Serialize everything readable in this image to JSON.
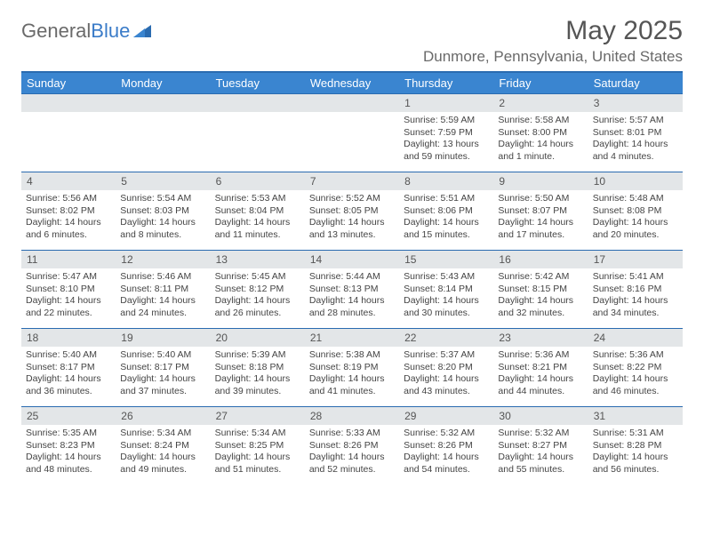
{
  "brand": {
    "part1": "General",
    "part2": "Blue"
  },
  "title": "May 2025",
  "location": "Dunmore, Pennsylvania, United States",
  "colors": {
    "header_bg": "#3a85d0",
    "header_border": "#2a6bb0",
    "daynum_bg": "#e3e6e8",
    "text": "#444444",
    "title_text": "#555555"
  },
  "day_headers": [
    "Sunday",
    "Monday",
    "Tuesday",
    "Wednesday",
    "Thursday",
    "Friday",
    "Saturday"
  ],
  "weeks": [
    [
      null,
      null,
      null,
      null,
      {
        "n": "1",
        "sr": "5:59 AM",
        "ss": "7:59 PM",
        "dl": "13 hours and 59 minutes."
      },
      {
        "n": "2",
        "sr": "5:58 AM",
        "ss": "8:00 PM",
        "dl": "14 hours and 1 minute."
      },
      {
        "n": "3",
        "sr": "5:57 AM",
        "ss": "8:01 PM",
        "dl": "14 hours and 4 minutes."
      }
    ],
    [
      {
        "n": "4",
        "sr": "5:56 AM",
        "ss": "8:02 PM",
        "dl": "14 hours and 6 minutes."
      },
      {
        "n": "5",
        "sr": "5:54 AM",
        "ss": "8:03 PM",
        "dl": "14 hours and 8 minutes."
      },
      {
        "n": "6",
        "sr": "5:53 AM",
        "ss": "8:04 PM",
        "dl": "14 hours and 11 minutes."
      },
      {
        "n": "7",
        "sr": "5:52 AM",
        "ss": "8:05 PM",
        "dl": "14 hours and 13 minutes."
      },
      {
        "n": "8",
        "sr": "5:51 AM",
        "ss": "8:06 PM",
        "dl": "14 hours and 15 minutes."
      },
      {
        "n": "9",
        "sr": "5:50 AM",
        "ss": "8:07 PM",
        "dl": "14 hours and 17 minutes."
      },
      {
        "n": "10",
        "sr": "5:48 AM",
        "ss": "8:08 PM",
        "dl": "14 hours and 20 minutes."
      }
    ],
    [
      {
        "n": "11",
        "sr": "5:47 AM",
        "ss": "8:10 PM",
        "dl": "14 hours and 22 minutes."
      },
      {
        "n": "12",
        "sr": "5:46 AM",
        "ss": "8:11 PM",
        "dl": "14 hours and 24 minutes."
      },
      {
        "n": "13",
        "sr": "5:45 AM",
        "ss": "8:12 PM",
        "dl": "14 hours and 26 minutes."
      },
      {
        "n": "14",
        "sr": "5:44 AM",
        "ss": "8:13 PM",
        "dl": "14 hours and 28 minutes."
      },
      {
        "n": "15",
        "sr": "5:43 AM",
        "ss": "8:14 PM",
        "dl": "14 hours and 30 minutes."
      },
      {
        "n": "16",
        "sr": "5:42 AM",
        "ss": "8:15 PM",
        "dl": "14 hours and 32 minutes."
      },
      {
        "n": "17",
        "sr": "5:41 AM",
        "ss": "8:16 PM",
        "dl": "14 hours and 34 minutes."
      }
    ],
    [
      {
        "n": "18",
        "sr": "5:40 AM",
        "ss": "8:17 PM",
        "dl": "14 hours and 36 minutes."
      },
      {
        "n": "19",
        "sr": "5:40 AM",
        "ss": "8:17 PM",
        "dl": "14 hours and 37 minutes."
      },
      {
        "n": "20",
        "sr": "5:39 AM",
        "ss": "8:18 PM",
        "dl": "14 hours and 39 minutes."
      },
      {
        "n": "21",
        "sr": "5:38 AM",
        "ss": "8:19 PM",
        "dl": "14 hours and 41 minutes."
      },
      {
        "n": "22",
        "sr": "5:37 AM",
        "ss": "8:20 PM",
        "dl": "14 hours and 43 minutes."
      },
      {
        "n": "23",
        "sr": "5:36 AM",
        "ss": "8:21 PM",
        "dl": "14 hours and 44 minutes."
      },
      {
        "n": "24",
        "sr": "5:36 AM",
        "ss": "8:22 PM",
        "dl": "14 hours and 46 minutes."
      }
    ],
    [
      {
        "n": "25",
        "sr": "5:35 AM",
        "ss": "8:23 PM",
        "dl": "14 hours and 48 minutes."
      },
      {
        "n": "26",
        "sr": "5:34 AM",
        "ss": "8:24 PM",
        "dl": "14 hours and 49 minutes."
      },
      {
        "n": "27",
        "sr": "5:34 AM",
        "ss": "8:25 PM",
        "dl": "14 hours and 51 minutes."
      },
      {
        "n": "28",
        "sr": "5:33 AM",
        "ss": "8:26 PM",
        "dl": "14 hours and 52 minutes."
      },
      {
        "n": "29",
        "sr": "5:32 AM",
        "ss": "8:26 PM",
        "dl": "14 hours and 54 minutes."
      },
      {
        "n": "30",
        "sr": "5:32 AM",
        "ss": "8:27 PM",
        "dl": "14 hours and 55 minutes."
      },
      {
        "n": "31",
        "sr": "5:31 AM",
        "ss": "8:28 PM",
        "dl": "14 hours and 56 minutes."
      }
    ]
  ],
  "labels": {
    "sunrise": "Sunrise:",
    "sunset": "Sunset:",
    "daylight": "Daylight:"
  }
}
